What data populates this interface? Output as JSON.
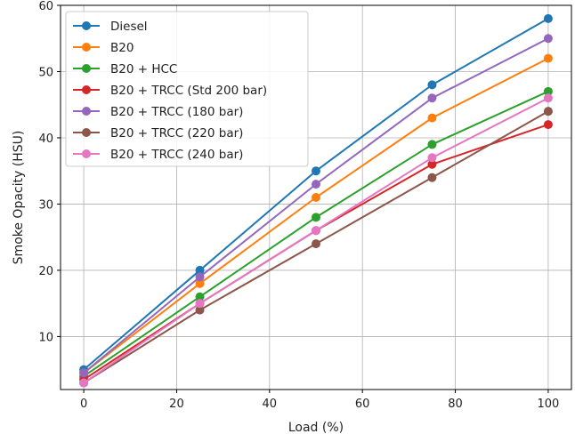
{
  "chart_data": {
    "type": "line",
    "xlabel": "Load (%)",
    "ylabel": "Smoke Opacity (HSU)",
    "xlim": [
      -5,
      105
    ],
    "ylim": [
      2,
      60
    ],
    "xticks": [
      0,
      20,
      40,
      60,
      80,
      100
    ],
    "yticks": [
      10,
      20,
      30,
      40,
      50,
      60
    ],
    "x": [
      0,
      25,
      50,
      75,
      100
    ],
    "grid": true,
    "legend_position": "top-left",
    "series": [
      {
        "name": "Diesel",
        "color": "#1f77b4",
        "values": [
          5,
          20,
          35,
          48,
          58
        ]
      },
      {
        "name": "B20",
        "color": "#ff7f0e",
        "values": [
          4.5,
          18,
          31,
          43,
          52
        ]
      },
      {
        "name": "B20 + HCC",
        "color": "#2ca02c",
        "values": [
          4,
          16,
          28,
          39,
          47
        ]
      },
      {
        "name": "B20 + TRCC (Std 200 bar)",
        "color": "#d62728",
        "values": [
          3.5,
          15,
          26,
          36,
          42
        ]
      },
      {
        "name": "B20 + TRCC (180 bar)",
        "color": "#9467bd",
        "values": [
          4.5,
          19,
          33,
          46,
          55
        ]
      },
      {
        "name": "B20 + TRCC (220 bar)",
        "color": "#8c564b",
        "values": [
          3,
          14,
          24,
          34,
          44
        ]
      },
      {
        "name": "B20 + TRCC (240 bar)",
        "color": "#e377c2",
        "values": [
          3,
          15,
          26,
          37,
          46
        ]
      }
    ]
  }
}
